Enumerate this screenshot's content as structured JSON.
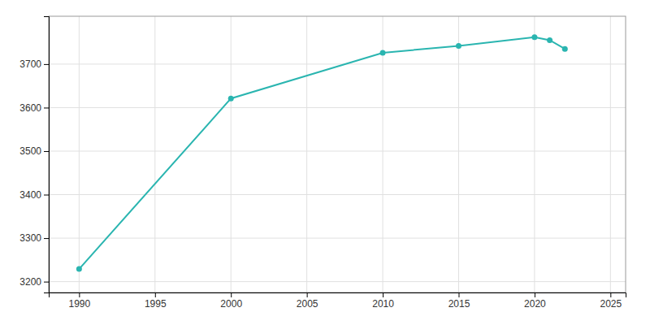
{
  "chart_data": {
    "type": "line",
    "x": [
      1990,
      2000,
      2010,
      2015,
      2020,
      2021,
      2022
    ],
    "values": [
      3229,
      3621,
      3726,
      3742,
      3762,
      3755,
      3735
    ],
    "color": "#2ab5b0",
    "marker": "circle",
    "xlim": [
      1988,
      2026
    ],
    "ylim": [
      3175,
      3810
    ],
    "xticks": [
      1990,
      1995,
      2000,
      2005,
      2010,
      2015,
      2020,
      2025
    ],
    "yticks": [
      3200,
      3300,
      3400,
      3500,
      3600,
      3700
    ],
    "grid": true
  }
}
